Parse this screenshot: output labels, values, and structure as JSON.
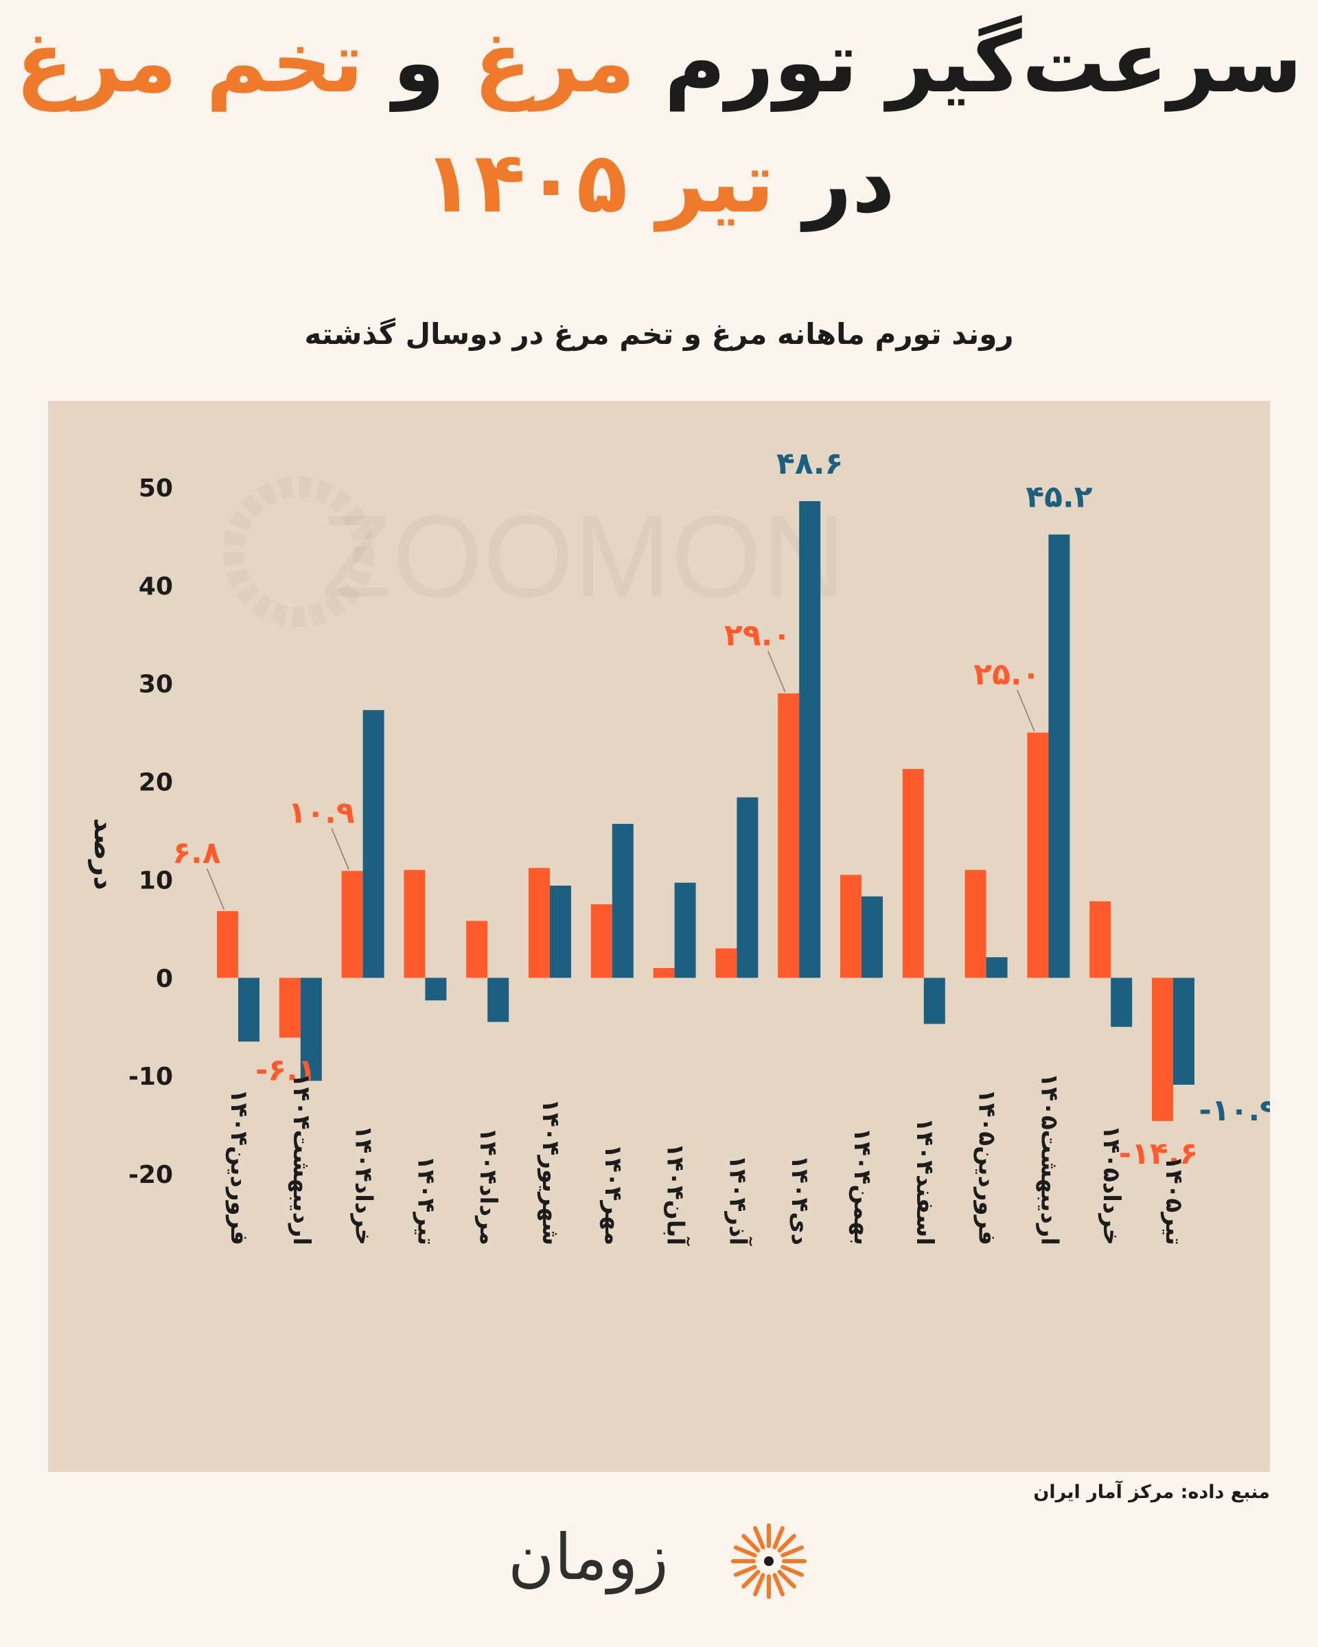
{
  "title": {
    "line1_part1": "سرعت‌گیر تورم",
    "line1_part2": "مرغ",
    "line1_part3": "و",
    "line1_part4": "تخم مرغ",
    "line2_part1": "در",
    "line2_part2": "تیر ۱۴۰۵"
  },
  "chart_data": {
    "type": "bar",
    "title": "روند تورم ماهانه مرغ و تخم مرغ در دوسال گذشته",
    "ylabel": "درصد",
    "ylim": [
      -20,
      50
    ],
    "yticks": [
      "50",
      "40",
      "30",
      "20",
      "10",
      "0",
      "-10",
      "-20"
    ],
    "ytick_values": [
      50,
      40,
      30,
      20,
      10,
      0,
      -10,
      -20
    ],
    "categories": [
      "فروردین۱۴۰۴",
      "اردیبهشت۱۴۰۴",
      "خرداد۱۴۰۴",
      "تیر۱۴۰۴",
      "مرداد۱۴۰۴",
      "شهریور۱۴۰۴",
      "مهر۱۴۰۴",
      "آبان۱۴۰۴",
      "آذر۱۴۰۴",
      "دی۱۴۰۴",
      "بهمن۱۴۰۴",
      "اسفند۱۴۰۴",
      "فروردین۱۴۰۵",
      "اردیبهشت۱۴۰۵",
      "خرداد۱۴۰۵",
      "تیر۱۴۰۵"
    ],
    "series": [
      {
        "color": "#ff5a2c",
        "values": [
          6.8,
          -6.1,
          10.9,
          11.0,
          5.8,
          11.2,
          7.5,
          1.0,
          3.0,
          29.0,
          10.5,
          21.3,
          11.0,
          25.0,
          7.8,
          -14.6
        ]
      },
      {
        "color": "#1d5f80",
        "values": [
          -6.5,
          -10.5,
          27.3,
          -2.3,
          -4.5,
          9.4,
          15.7,
          9.7,
          18.4,
          48.6,
          8.3,
          -4.7,
          2.1,
          45.2,
          -5.0,
          -10.9
        ]
      }
    ],
    "data_labels": [
      {
        "series": 0,
        "index": 0,
        "text": "۶.۸"
      },
      {
        "series": 0,
        "index": 1,
        "text": "-۶.۱"
      },
      {
        "series": 0,
        "index": 2,
        "text": "۱۰.۹"
      },
      {
        "series": 0,
        "index": 9,
        "text": "۲۹.۰"
      },
      {
        "series": 0,
        "index": 13,
        "text": "۲۵.۰"
      },
      {
        "series": 0,
        "index": 15,
        "text": "-۱۴.۶"
      },
      {
        "series": 1,
        "index": 9,
        "text": "۴۸.۶"
      },
      {
        "series": 1,
        "index": 13,
        "text": "۴۵.۲"
      },
      {
        "series": 1,
        "index": 15,
        "text": "-۱۰.۹"
      }
    ],
    "watermark": "ZOOMON",
    "grid": false,
    "legend": "none"
  },
  "source": "منبع داده: مرکز آمار ایران",
  "logo": {
    "text": "زومان"
  }
}
